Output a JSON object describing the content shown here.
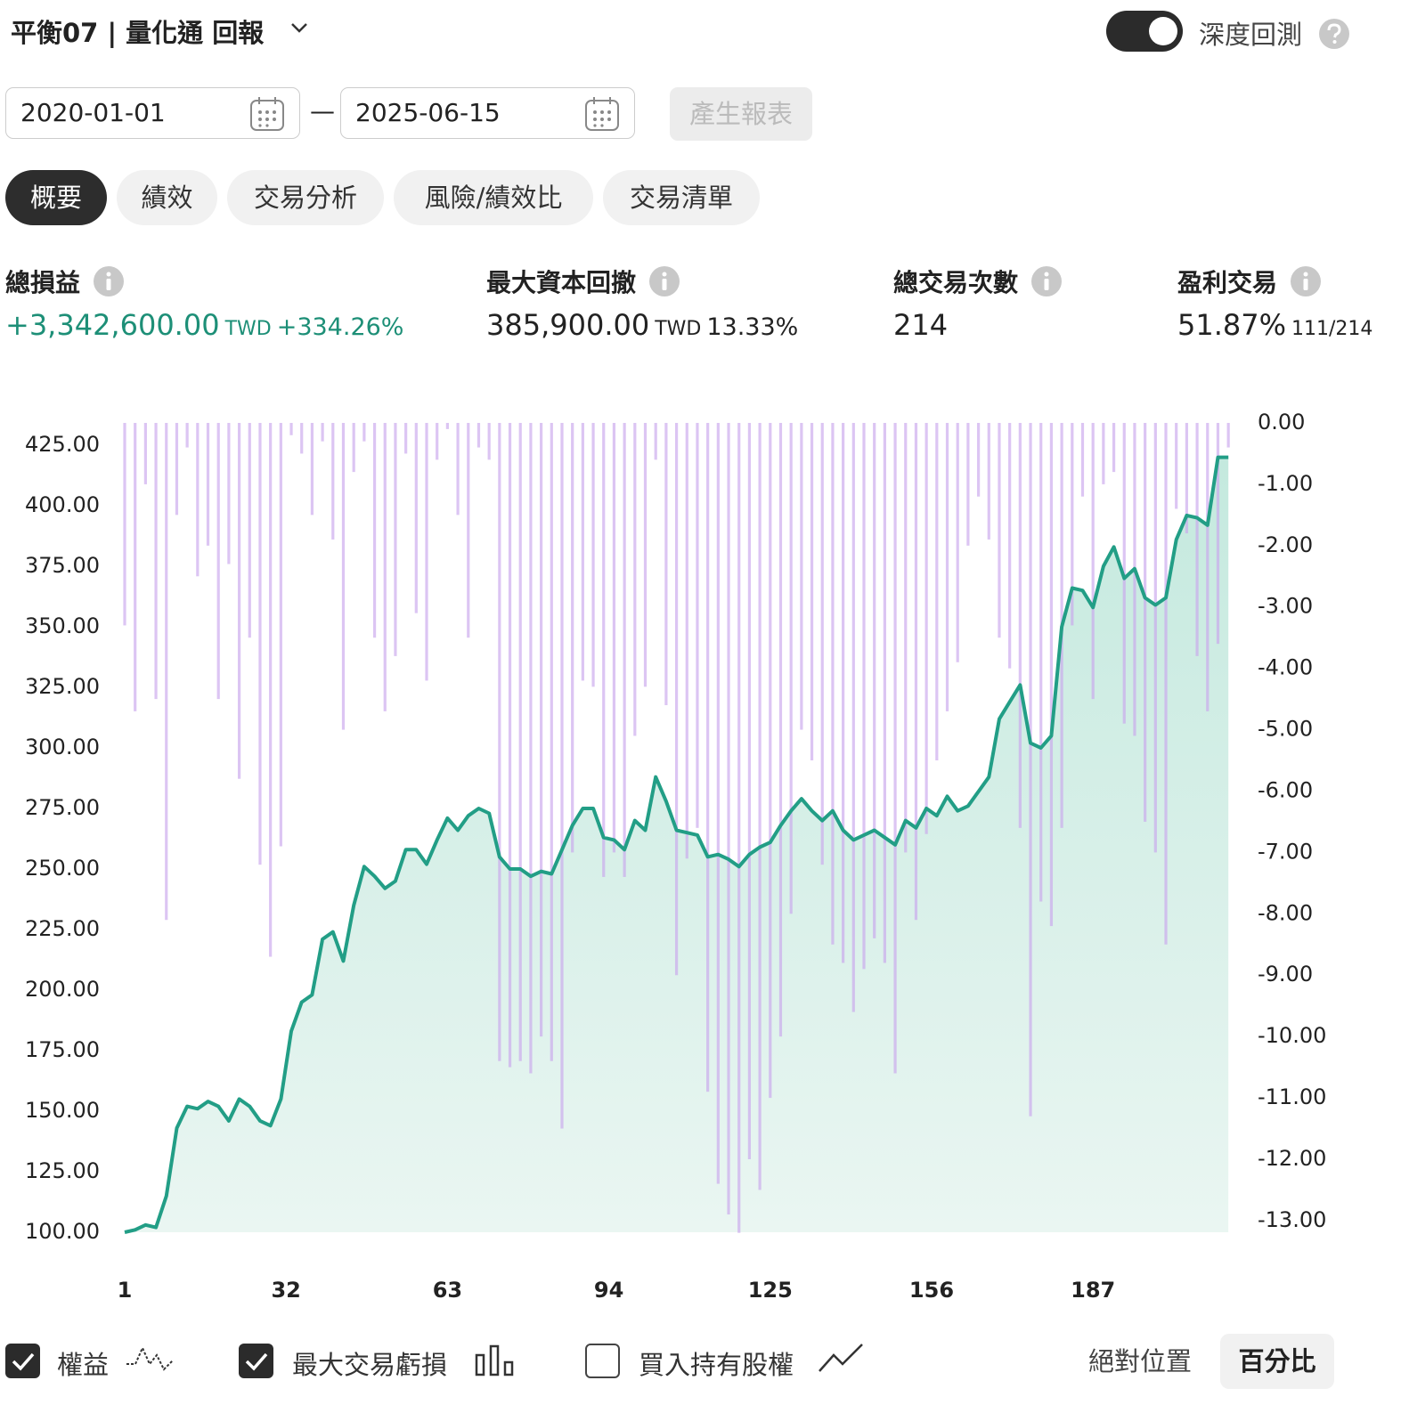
{
  "header": {
    "title": "平衡07 | 量化通 回報",
    "toggle_label": "深度回測",
    "toggle_on": true
  },
  "date_range": {
    "start": "2020-01-01",
    "separator": "—",
    "end": "2025-06-15",
    "button": "產生報表"
  },
  "tabs": {
    "items": [
      "概要",
      "績效",
      "交易分析",
      "風險/績效比",
      "交易清單"
    ],
    "active": 0
  },
  "stats": [
    {
      "label": "總損益",
      "value": "+3,342,600.00",
      "unit": "TWD",
      "extra": "+334.26%"
    },
    {
      "label": "最大資本回撤",
      "value": "385,900.00",
      "unit": "TWD",
      "extra": "13.33%"
    },
    {
      "label": "總交易次數",
      "value": "214"
    },
    {
      "label": "盈利交易",
      "value": "51.87%",
      "extra": "111/214"
    }
  ],
  "chart_data": {
    "type": "line",
    "x": [
      1,
      3,
      5,
      7,
      9,
      11,
      13,
      15,
      17,
      19,
      21,
      23,
      25,
      27,
      29,
      31,
      33,
      35,
      37,
      39,
      41,
      43,
      45,
      47,
      49,
      51,
      53,
      55,
      57,
      59,
      61,
      63,
      65,
      67,
      69,
      71,
      73,
      75,
      77,
      79,
      81,
      83,
      85,
      87,
      89,
      91,
      93,
      95,
      97,
      99,
      101,
      103,
      105,
      107,
      109,
      111,
      113,
      115,
      117,
      119,
      121,
      123,
      125,
      127,
      129,
      131,
      133,
      135,
      137,
      139,
      141,
      143,
      145,
      147,
      149,
      151,
      153,
      155,
      157,
      159,
      161,
      163,
      165,
      167,
      169,
      171,
      173,
      175,
      177,
      179,
      181,
      183,
      185,
      187,
      189,
      191,
      193,
      195,
      197,
      199,
      201,
      203,
      205,
      207,
      209,
      211,
      213
    ],
    "xlim": [
      1,
      214
    ],
    "xticks": [
      1,
      32,
      63,
      94,
      125,
      156,
      187
    ],
    "ylim": [
      100,
      434.2
    ],
    "yticks": [
      {
        "value": 100,
        "label": "100.00"
      },
      {
        "value": 125,
        "label": "125.00"
      },
      {
        "value": 150,
        "label": "150.00"
      },
      {
        "value": 175,
        "label": "175.00"
      },
      {
        "value": 200,
        "label": "200.00"
      },
      {
        "value": 225,
        "label": "225.00"
      },
      {
        "value": 250,
        "label": "250.00"
      },
      {
        "value": 275,
        "label": "275.00"
      },
      {
        "value": 300,
        "label": "300.00"
      },
      {
        "value": 325,
        "label": "325.00"
      },
      {
        "value": 350,
        "label": "350.00"
      },
      {
        "value": 375,
        "label": "375.00"
      },
      {
        "value": 400,
        "label": "400.00"
      },
      {
        "value": 425,
        "label": "425.00"
      }
    ],
    "y2lim": [
      -13.19,
      0
    ],
    "y2ticks": [
      {
        "value": 0,
        "label": "0.00"
      },
      {
        "value": -1,
        "label": "-1.00"
      },
      {
        "value": -2,
        "label": "-2.00"
      },
      {
        "value": -3,
        "label": "-3.00"
      },
      {
        "value": -4,
        "label": "-4.00"
      },
      {
        "value": -5,
        "label": "-5.00"
      },
      {
        "value": -6,
        "label": "-6.00"
      },
      {
        "value": -7,
        "label": "-7.00"
      },
      {
        "value": -8,
        "label": "-8.00"
      },
      {
        "value": -9,
        "label": "-9.00"
      },
      {
        "value": -10,
        "label": "-10.00"
      },
      {
        "value": -11,
        "label": "-11.00"
      },
      {
        "value": -12,
        "label": "-12.00"
      },
      {
        "value": -13,
        "label": "-13.00"
      }
    ],
    "grid": false,
    "series": [
      {
        "name": "權益",
        "type": "line",
        "color": "#229e86",
        "visible": true,
        "values": [
          100,
          101,
          103,
          102,
          115,
          143,
          152,
          151,
          154,
          152,
          146,
          155,
          152,
          146,
          144,
          155,
          183,
          195,
          198,
          221,
          224,
          212,
          235,
          251,
          247,
          242,
          245,
          258,
          258,
          252,
          262,
          271,
          266,
          272,
          275,
          273,
          255,
          250,
          250,
          247,
          249,
          248,
          258,
          268,
          275,
          275,
          263,
          262,
          258,
          270,
          266,
          288,
          278,
          266,
          265,
          264,
          255,
          256,
          254,
          251,
          256,
          259,
          261,
          268,
          274,
          279,
          274,
          270,
          274,
          266,
          262,
          264,
          266,
          263,
          260,
          270,
          267,
          275,
          272,
          280,
          274,
          276,
          282,
          288,
          312,
          319,
          326,
          302,
          300,
          305,
          350,
          366,
          365,
          358,
          375,
          383,
          370,
          374,
          362,
          359,
          362,
          386,
          396,
          395,
          392,
          420,
          420
        ]
      },
      {
        "name": "最大交易虧損",
        "type": "bar",
        "axis": "y2",
        "color": "#c9a6ec",
        "visible": true,
        "values": [
          -3.3,
          -4.7,
          -1.0,
          -4.5,
          -8.1,
          -1.5,
          -0.4,
          -2.5,
          -2.0,
          -4.5,
          -2.3,
          -5.8,
          -3.5,
          -7.2,
          -8.7,
          -6.9,
          -0.2,
          -0.5,
          -1.5,
          -0.3,
          -1.9,
          -5.0,
          -0.8,
          -0.3,
          -3.5,
          -4.7,
          -3.8,
          -0.5,
          -3.1,
          -4.2,
          -0.6,
          -0.1,
          -1.5,
          -3.5,
          -0.4,
          -0.6,
          -10.4,
          -10.5,
          -10.4,
          -10.6,
          -10.0,
          -10.4,
          -11.5,
          -7.0,
          -4.2,
          -4.3,
          -7.4,
          -7.0,
          -7.4,
          -5.1,
          -4.3,
          -0.6,
          -4.6,
          -9.0,
          -7.1,
          -6.6,
          -10.9,
          -12.4,
          -12.9,
          -13.2,
          -12.0,
          -12.5,
          -11.0,
          -10.0,
          -8.0,
          -5.0,
          -5.5,
          -7.2,
          -8.5,
          -8.8,
          -9.6,
          -8.9,
          -8.4,
          -8.8,
          -10.6,
          -7.0,
          -8.1,
          -6.7,
          -5.5,
          -4.7,
          -3.9,
          -2.0,
          -1.2,
          -1.9,
          -3.5,
          -4.0,
          -6.6,
          -11.3,
          -7.8,
          -8.2,
          -6.6,
          -3.3,
          -1.2,
          -4.5,
          -1.0,
          -0.8,
          -4.9,
          -5.1,
          -6.5,
          -7.0,
          -8.5,
          -1.4,
          -1.8,
          -3.8,
          -4.7,
          -3.6,
          -0.4
        ]
      }
    ],
    "buy_hold": {
      "name": "買入持有股權",
      "visible": false
    }
  },
  "position_modes": {
    "items": [
      "絕對位置",
      "百分比"
    ],
    "active": 1
  }
}
